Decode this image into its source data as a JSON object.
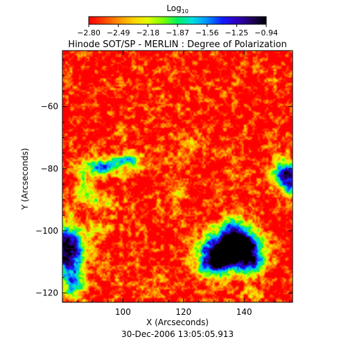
{
  "chart_data": {
    "type": "heatmap",
    "title": "Hinode SOT/SP - MERLIN : Degree of Polarization",
    "subtitle": "30-Dec-2006 13:05:05.913",
    "xlabel": "X (Arcseconds)",
    "ylabel": "Y (Arcseconds)",
    "xlim": [
      80,
      156
    ],
    "ylim": [
      -123,
      -42
    ],
    "x_ticks": [
      100,
      120,
      140
    ],
    "y_ticks": [
      -60,
      -80,
      -100,
      -120
    ],
    "x_tick_labels": [
      "100",
      "120",
      "140"
    ],
    "y_tick_labels": [
      "−60",
      "−80",
      "−100",
      "−120"
    ],
    "colorbar": {
      "label_base": "Log",
      "label_sub": "10",
      "vmin": -2.8,
      "vmax": -0.94,
      "tick_labels": [
        "−2.80",
        "−2.49",
        "−2.18",
        "−1.87",
        "−1.56",
        "−1.25",
        "−0.94"
      ],
      "tick_values": [
        -2.8,
        -2.49,
        -2.18,
        -1.87,
        -1.56,
        -1.25,
        -0.94
      ],
      "colormap": [
        "#ff0000",
        "#ff4000",
        "#ff9000",
        "#ffd000",
        "#e0ff00",
        "#80ff00",
        "#00f060",
        "#00e0e0",
        "#0090ff",
        "#1020ff",
        "#3000c0",
        "#200060",
        "#000000"
      ]
    },
    "background_level": -2.74,
    "features": [
      {
        "x": 133.5,
        "y": -106.5,
        "sx": 5.2,
        "sy": 4.2,
        "amp": 2.1
      },
      {
        "x": 139.5,
        "y": -104.0,
        "sx": 4.0,
        "sy": 3.5,
        "amp": 1.4
      },
      {
        "x": 129.0,
        "y": -111.0,
        "sx": 3.2,
        "sy": 3.0,
        "amp": 1.0
      },
      {
        "x": 142.5,
        "y": -110.0,
        "sx": 3.4,
        "sy": 3.2,
        "amp": 1.0
      },
      {
        "x": 136.0,
        "y": -98.5,
        "sx": 3.0,
        "sy": 2.6,
        "amp": 0.6
      },
      {
        "x": 82.0,
        "y": -106.5,
        "sx": 3.6,
        "sy": 5.5,
        "amp": 1.9
      },
      {
        "x": 83.5,
        "y": -117.0,
        "sx": 2.4,
        "sy": 3.0,
        "amp": 1.0
      },
      {
        "x": 90.5,
        "y": -80.0,
        "sx": 3.0,
        "sy": 2.2,
        "amp": 1.0
      },
      {
        "x": 96.5,
        "y": -78.5,
        "sx": 3.2,
        "sy": 2.0,
        "amp": 0.9
      },
      {
        "x": 102.5,
        "y": -77.5,
        "sx": 2.5,
        "sy": 1.8,
        "amp": 0.9
      },
      {
        "x": 87.0,
        "y": -88.0,
        "sx": 2.0,
        "sy": 3.0,
        "amp": 0.7
      },
      {
        "x": 93.0,
        "y": -91.0,
        "sx": 3.0,
        "sy": 1.8,
        "amp": 0.55
      },
      {
        "x": 153.5,
        "y": -81.5,
        "sx": 3.2,
        "sy": 3.2,
        "amp": 1.4
      },
      {
        "x": 156.0,
        "y": -86.0,
        "sx": 2.0,
        "sy": 2.5,
        "amp": 1.0
      },
      {
        "x": 92.0,
        "y": -99.0,
        "sx": 2.2,
        "sy": 2.0,
        "amp": 0.5
      },
      {
        "x": 118.0,
        "y": -88.0,
        "sx": 2.0,
        "sy": 2.0,
        "amp": 0.35
      },
      {
        "x": 99.0,
        "y": -68.0,
        "sx": 1.6,
        "sy": 1.6,
        "amp": 0.3
      },
      {
        "x": 124.0,
        "y": -72.0,
        "sx": 2.0,
        "sy": 2.0,
        "amp": 0.3
      },
      {
        "x": 112.0,
        "y": -115.0,
        "sx": 2.2,
        "sy": 1.6,
        "amp": 0.35
      },
      {
        "x": 142.0,
        "y": -120.0,
        "sx": 2.0,
        "sy": 2.0,
        "amp": 0.4
      }
    ]
  }
}
